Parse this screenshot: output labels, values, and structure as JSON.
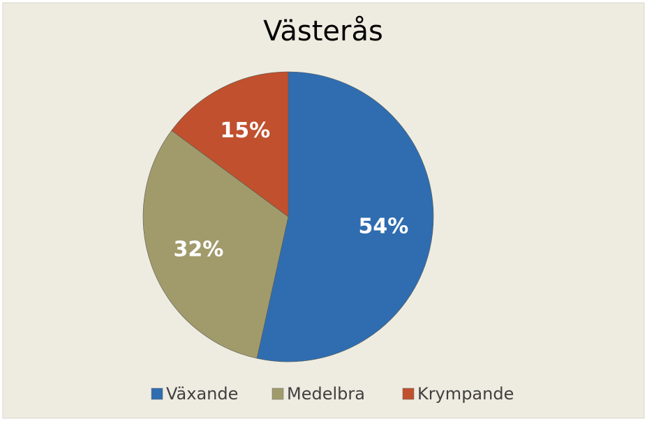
{
  "chart_data": {
    "type": "pie",
    "title": "Västerås",
    "categories": [
      "Växande",
      "Medelbra",
      "Krympande"
    ],
    "values": [
      54,
      32,
      15
    ],
    "value_labels": [
      "54%",
      "32%",
      "15%"
    ],
    "colors": [
      "#2f6db0",
      "#a19b6c",
      "#c0502e"
    ],
    "legend": "bottom"
  }
}
